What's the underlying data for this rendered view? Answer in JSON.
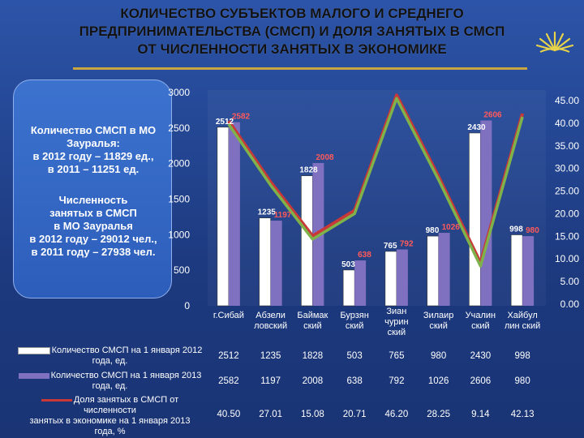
{
  "title": {
    "line1": "КОЛИЧЕСТВО СУБЪЕКТОВ МАЛОГО И СРЕДНЕГО",
    "line2": "ПРЕДПРИНИМАТЕЛЬСТВА (СМСП) И ДОЛЯ ЗАНЯТЫХ В СМСП",
    "line3": "ОТ ЧИСЛЕННОСТИ ЗАНЯТЫХ В ЭКОНОМИКЕ"
  },
  "info": {
    "block1": [
      "Количество СМСП в МО",
      "Зауралья:",
      "в 2012 году – 11829 ед.,",
      "в 2011 – 11251 ед."
    ],
    "block2": [
      "Численность",
      "занятых в СМСП",
      "в МО Зауралья",
      "в 2012 году – 29012 чел.,",
      "в 2011 году – 27938 чел."
    ]
  },
  "colors": {
    "series2012": "#ffffff",
    "series2013": "#8070c0",
    "share_line": "#c83838",
    "share_line2": "#7fb24a"
  },
  "chart_data": {
    "type": "bar",
    "categories": [
      "г.Сибай",
      "Абзели\nловский",
      "Баймак\nский",
      "Бурзян\nский",
      "Зиан\nчурин\nский",
      "Зилаир\nский",
      "Учалин\nский",
      "Хайбул\nлин ский"
    ],
    "series": [
      {
        "name": "Количество СМСП на 1 января 2012 года, ед.",
        "values": [
          2512,
          1235,
          1828,
          503,
          765,
          980,
          2430,
          998
        ],
        "axis": "left"
      },
      {
        "name": "Количество СМСП на 1 января 2013 года, ед.",
        "values": [
          2582,
          1197,
          2008,
          638,
          792,
          1026,
          2606,
          980
        ],
        "axis": "left"
      },
      {
        "name": "Доля занятых в СМСП от численности занятых в экономике на 1 января 2013 года, %",
        "values": [
          40.5,
          27.01,
          15.08,
          20.71,
          46.2,
          28.25,
          9.14,
          42.13
        ],
        "axis": "right",
        "type": "line"
      }
    ],
    "value_labels": {
      "s2012": [
        "2512",
        "1235",
        "1828",
        "503",
        "765",
        "980",
        "2430",
        "998"
      ],
      "s2013": [
        "2582",
        "1197",
        "2008",
        "638",
        "792",
        "1026",
        "2606",
        "980"
      ],
      "share": [
        "40.50",
        "27.01",
        "15.08",
        "20.71",
        "46.20",
        "28.25",
        "9.14",
        "42.13"
      ]
    },
    "y_left": {
      "ylim": [
        0,
        3000
      ],
      "ticks": [
        "0",
        "500",
        "1000",
        "1500",
        "2000",
        "2500",
        "3000"
      ]
    },
    "y_right": {
      "ylim": [
        0,
        45
      ],
      "ticks": [
        "0.00",
        "5.00",
        "10.00",
        "15.00",
        "20.00",
        "25.00",
        "30.00",
        "35.00",
        "40.00",
        "45.00"
      ]
    },
    "legend": {
      "s2012": [
        "Количество СМСП на 1 января 2012",
        "года, ед."
      ],
      "s2013": [
        "Количество СМСП на 1 января 2013",
        "года, ед."
      ],
      "share": [
        "Доля занятых в СМСП от численности",
        "занятых в экономике на 1 января 2013",
        "года, %"
      ]
    }
  }
}
